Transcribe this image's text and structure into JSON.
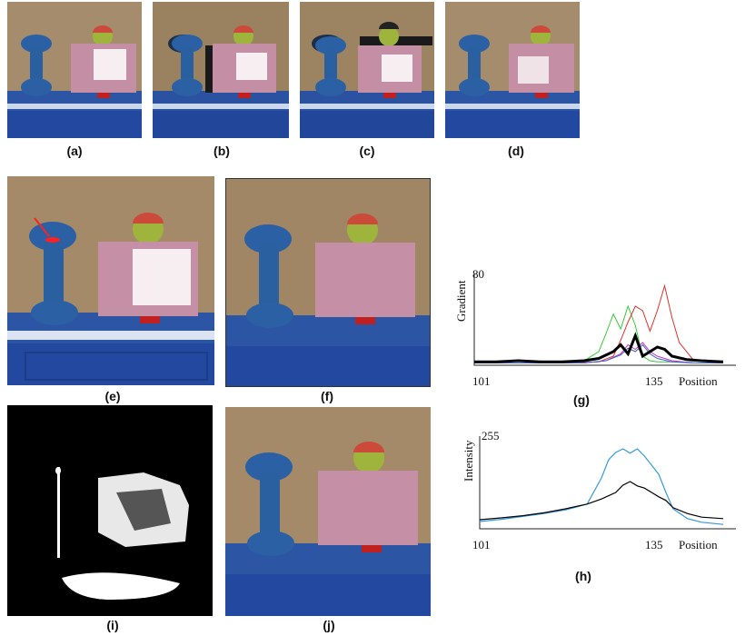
{
  "figure": {
    "captions": {
      "a": "(a)",
      "b": "(b)",
      "c": "(c)",
      "d": "(d)",
      "e": "(e)",
      "f": "(f)",
      "g": "(g)",
      "h": "(h)",
      "i": "(i)",
      "j": "(j)"
    },
    "colors": {
      "wall": "#a48a68",
      "dumbbell": "#2a5fa0",
      "box": "#c58fa5",
      "apple": "#9fb43c",
      "base": "#2c54a4",
      "highlight": "#ffffff"
    }
  },
  "chart_data": [
    {
      "type": "line",
      "panel": "(g)",
      "ylabel": "Gradient",
      "ymax_label": "80",
      "xlabel": "Position",
      "x_start_label": "101",
      "x_end_label": "135",
      "xlim": [
        101,
        135
      ],
      "ylim": [
        0,
        80
      ],
      "series": [
        {
          "color": "#33cc33",
          "x": [
            101,
            104,
            107,
            110,
            113,
            116,
            118,
            119,
            120,
            121,
            122,
            123,
            124,
            125,
            126,
            128,
            131,
            135
          ],
          "values": [
            2,
            2,
            2,
            2,
            3,
            4,
            12,
            28,
            45,
            32,
            52,
            35,
            8,
            4,
            3,
            3,
            2,
            2
          ]
        },
        {
          "color": "#e03030",
          "x": [
            101,
            106,
            110,
            114,
            118,
            120,
            121,
            122,
            123,
            124,
            125,
            126,
            127,
            128,
            129,
            131,
            133,
            135
          ],
          "values": [
            2,
            2,
            2,
            2,
            3,
            8,
            22,
            38,
            52,
            48,
            30,
            48,
            70,
            42,
            20,
            4,
            3,
            2
          ]
        },
        {
          "color": "#cc33cc",
          "x": [
            101,
            110,
            116,
            119,
            121,
            122,
            123,
            124,
            125,
            126,
            128,
            131,
            135
          ],
          "values": [
            2,
            2,
            2,
            4,
            10,
            18,
            14,
            20,
            12,
            8,
            4,
            2,
            2
          ]
        },
        {
          "color": "#3366cc",
          "x": [
            101,
            110,
            116,
            119,
            121,
            122,
            123,
            124,
            125,
            126,
            128,
            131,
            135
          ],
          "values": [
            2,
            2,
            2,
            4,
            9,
            15,
            12,
            18,
            10,
            6,
            3,
            2,
            2
          ]
        },
        {
          "color": "#000000",
          "x": [
            101,
            104,
            107,
            110,
            113,
            116,
            118,
            120,
            121,
            122,
            123,
            124,
            125,
            126,
            127,
            128,
            130,
            132,
            135
          ],
          "values": [
            3,
            3,
            4,
            3,
            3,
            4,
            6,
            12,
            18,
            10,
            26,
            8,
            12,
            16,
            14,
            8,
            5,
            4,
            3
          ]
        }
      ]
    },
    {
      "type": "line",
      "panel": "(h)",
      "ylabel": "Intensity",
      "ymax_label": "255",
      "xlabel": "Position",
      "x_start_label": "101",
      "x_end_label": "135",
      "xlim": [
        101,
        135
      ],
      "ylim": [
        0,
        255
      ],
      "series": [
        {
          "color": "#3399dd",
          "x": [
            101,
            104,
            107,
            110,
            113,
            116,
            118,
            119,
            120,
            121,
            122,
            123,
            124,
            125,
            126,
            127,
            128,
            130,
            132,
            135
          ],
          "values": [
            20,
            26,
            34,
            42,
            52,
            68,
            140,
            190,
            210,
            220,
            208,
            220,
            200,
            175,
            150,
            100,
            55,
            28,
            18,
            12
          ]
        },
        {
          "color": "#000000",
          "x": [
            101,
            104,
            107,
            110,
            113,
            116,
            118,
            120,
            121,
            122,
            123,
            124,
            125,
            126,
            127,
            128,
            130,
            132,
            135
          ],
          "values": [
            25,
            30,
            36,
            44,
            55,
            68,
            82,
            100,
            120,
            130,
            118,
            112,
            100,
            88,
            78,
            58,
            42,
            32,
            28
          ]
        }
      ]
    }
  ]
}
